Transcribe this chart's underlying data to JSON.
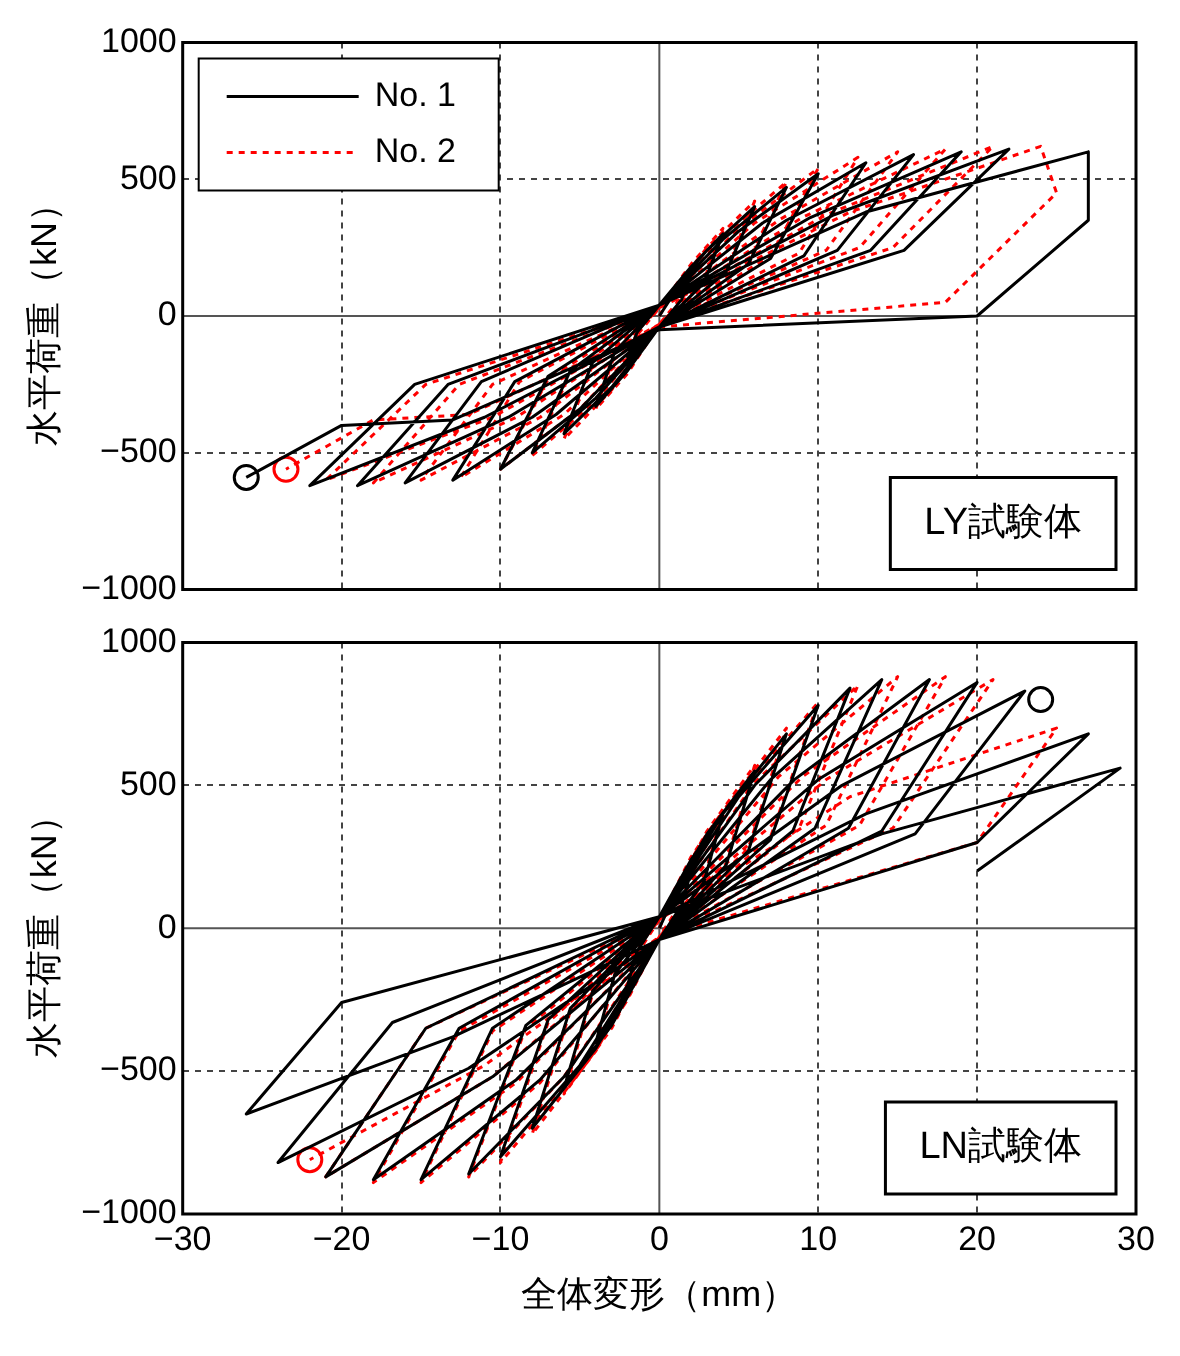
{
  "chart_data": [
    {
      "type": "line",
      "ylabel": "水平荷重（kN）",
      "xlim": [
        -30,
        30
      ],
      "xticks": [
        -30,
        -20,
        -10,
        0,
        10,
        20,
        30
      ],
      "ylim": [
        -1000,
        1000
      ],
      "yticks": [
        -1000,
        -500,
        0,
        500,
        1000
      ],
      "grid": true,
      "legend": "top left",
      "tick_labels": "y",
      "marker": "none",
      "annotations": [
        "LY試験体"
      ],
      "series": [
        {
          "name": "No. 1",
          "color": "#000000",
          "line_style": "solid",
          "x": [
            0,
            1,
            2,
            1.4,
            0,
            -1,
            -2,
            -1.4,
            0,
            2,
            4,
            2.8,
            0,
            -2,
            -4,
            -2.8,
            0,
            3,
            6,
            4.2,
            0,
            -3,
            -6,
            -4.2,
            0,
            4,
            8,
            5.6,
            0,
            -4,
            -8,
            -5.6,
            0,
            5,
            10,
            7,
            0,
            -5,
            -10,
            -7,
            0,
            6.5,
            13,
            9.1,
            0,
            -6.5,
            -13,
            -9.1,
            0,
            8,
            16,
            11.2,
            0,
            -8,
            -16,
            -11.2,
            0,
            9.5,
            19,
            13.3,
            0,
            -9.5,
            -19,
            -13.3,
            0,
            11,
            22,
            15.4,
            0,
            -11,
            -22,
            -15.4,
            0,
            13,
            27,
            27,
            20,
            0,
            -13,
            -20,
            -26
          ],
          "values": [
            0,
            90,
            150,
            60,
            -40,
            -90,
            -150,
            -60,
            40,
            180,
            300,
            120,
            -40,
            -200,
            -330,
            -130,
            40,
            240,
            400,
            160,
            -40,
            -260,
            -430,
            -170,
            40,
            280,
            470,
            190,
            -40,
            -300,
            -500,
            -200,
            40,
            310,
            520,
            210,
            -40,
            -340,
            -560,
            -220,
            40,
            340,
            560,
            220,
            -40,
            -360,
            -600,
            -240,
            40,
            350,
            590,
            240,
            -40,
            -370,
            -610,
            -240,
            40,
            360,
            600,
            240,
            -40,
            -370,
            -620,
            -250,
            40,
            370,
            610,
            240,
            -40,
            -370,
            -620,
            -250,
            40,
            380,
            600,
            350,
            0,
            -50,
            -380,
            -400,
            -590
          ]
        },
        {
          "name": "No. 2",
          "color": "#ff0000",
          "line_style": "dotted",
          "x": [
            0,
            1,
            2,
            1.4,
            0,
            -1,
            -2,
            -1.4,
            0,
            2,
            4,
            2.8,
            0,
            -2,
            -4,
            -2.8,
            0,
            3,
            6,
            4.2,
            0,
            -3,
            -6,
            -4.2,
            0,
            4,
            8,
            5.6,
            0,
            -4,
            -8,
            -5.6,
            0,
            5,
            10,
            7,
            0,
            -5,
            -10,
            -7,
            0,
            6,
            12.5,
            8.8,
            0,
            -6,
            -12.5,
            -8.8,
            0,
            7.5,
            15,
            10.5,
            0,
            -7.5,
            -15,
            -10.5,
            0,
            9,
            18,
            12.6,
            0,
            -9,
            -18,
            -12.6,
            0,
            10.5,
            21,
            14.7,
            0,
            -10.5,
            -21,
            -14.7,
            0,
            12,
            24,
            25,
            18,
            0,
            -12,
            -18,
            -23.5
          ],
          "values": [
            0,
            100,
            160,
            70,
            -30,
            -100,
            -160,
            -70,
            30,
            190,
            320,
            130,
            -30,
            -210,
            -340,
            -140,
            30,
            250,
            420,
            170,
            -30,
            -270,
            -450,
            -180,
            30,
            290,
            490,
            200,
            -30,
            -310,
            -510,
            -210,
            30,
            320,
            540,
            220,
            -30,
            -340,
            -560,
            -230,
            30,
            340,
            580,
            230,
            -30,
            -360,
            -590,
            -240,
            30,
            350,
            600,
            240,
            -30,
            -370,
            -600,
            -250,
            30,
            360,
            610,
            250,
            -30,
            -370,
            -610,
            -250,
            30,
            370,
            620,
            250,
            -30,
            -370,
            -600,
            -250,
            30,
            380,
            620,
            450,
            50,
            -40,
            -360,
            -380,
            -560
          ]
        },
        {
          "type": "scatter",
          "marker": "circle",
          "color": "#000000",
          "x": [
            -26
          ],
          "values": [
            -590
          ]
        },
        {
          "type": "scatter",
          "marker": "circle",
          "color": "#ff0000",
          "x": [
            -23.5
          ],
          "values": [
            -560
          ]
        }
      ]
    },
    {
      "type": "line",
      "xlabel": "全体変形（mm）",
      "ylabel": "水平荷重（kN）",
      "xlim": [
        -30,
        30
      ],
      "xticks": [
        -30,
        -20,
        -10,
        0,
        10,
        20,
        30
      ],
      "ylim": [
        -1000,
        1000
      ],
      "yticks": [
        -1000,
        -500,
        0,
        500,
        1000
      ],
      "grid": true,
      "marker": "none",
      "annotations": [
        "LN試験体"
      ],
      "series": [
        {
          "color": "#000000",
          "line_style": "solid",
          "x": [
            0,
            1,
            2,
            1.4,
            0,
            -1,
            -2,
            -1.4,
            0,
            2,
            4,
            2.8,
            0,
            -2,
            -4,
            -2.8,
            0,
            3,
            6,
            4.2,
            0,
            -3,
            -6,
            -4.2,
            0,
            4,
            8,
            5.6,
            0,
            -4,
            -8,
            -5.6,
            0,
            5,
            10,
            7,
            0,
            -5,
            -10,
            -7,
            0,
            6,
            12,
            8.4,
            0,
            -6,
            -12,
            -8.4,
            0,
            7,
            14,
            9.8,
            0,
            -7.5,
            -15,
            -10.5,
            0,
            8.5,
            17,
            11.9,
            0,
            -9,
            -18,
            -12.6,
            0,
            10,
            20,
            14,
            0,
            -10.5,
            -21,
            -14.7,
            0,
            11.5,
            23,
            16.1,
            0,
            -12,
            -24,
            -16.8,
            0,
            13,
            27,
            20,
            0,
            -13,
            -26,
            -20,
            0,
            14,
            29,
            20
          ],
          "values": [
            0,
            120,
            200,
            80,
            -40,
            -120,
            -200,
            -80,
            40,
            240,
            400,
            160,
            -40,
            -240,
            -400,
            -160,
            40,
            330,
            550,
            220,
            -40,
            -340,
            -560,
            -220,
            40,
            400,
            680,
            270,
            -40,
            -420,
            -700,
            -280,
            40,
            460,
            780,
            310,
            -40,
            -480,
            -800,
            -320,
            40,
            500,
            840,
            340,
            -40,
            -520,
            -860,
            -340,
            40,
            520,
            870,
            350,
            -40,
            -530,
            -880,
            -350,
            40,
            520,
            870,
            350,
            -40,
            -530,
            -880,
            -350,
            40,
            520,
            860,
            340,
            -40,
            -520,
            -870,
            -350,
            40,
            500,
            830,
            330,
            -40,
            -490,
            -820,
            -330,
            40,
            400,
            680,
            300,
            -40,
            -380,
            -650,
            -260,
            40,
            330,
            560,
            200
          ]
        },
        {
          "color": "#ff0000",
          "line_style": "dotted",
          "x": [
            0,
            1,
            2,
            1.4,
            0,
            -1,
            -2,
            -1.4,
            0,
            2,
            4,
            2.8,
            0,
            -2,
            -4,
            -2.8,
            0,
            3,
            6,
            4.2,
            0,
            -3,
            -6,
            -4.2,
            0,
            4,
            8,
            5.6,
            0,
            -4,
            -8,
            -5.6,
            0,
            5,
            10,
            7,
            0,
            -5,
            -10,
            -7,
            0,
            6,
            12.5,
            8.8,
            0,
            -6,
            -12,
            -8.4,
            0,
            7.5,
            15,
            10.5,
            0,
            -7.5,
            -15,
            -10.5,
            0,
            9,
            18,
            12.6,
            0,
            -9,
            -18,
            -12.6,
            0,
            10.5,
            21,
            14.7,
            0,
            -10.5,
            -21,
            -14.7,
            0,
            12,
            25,
            20,
            0,
            -11,
            -22
          ],
          "values": [
            0,
            130,
            210,
            90,
            -30,
            -130,
            -210,
            -90,
            30,
            250,
            410,
            170,
            -30,
            -250,
            -420,
            -170,
            30,
            340,
            570,
            230,
            -30,
            -350,
            -580,
            -230,
            30,
            410,
            700,
            280,
            -30,
            -430,
            -720,
            -290,
            30,
            470,
            790,
            320,
            -30,
            -490,
            -820,
            -330,
            30,
            510,
            850,
            350,
            -30,
            -520,
            -870,
            -350,
            30,
            530,
            880,
            360,
            -30,
            -540,
            -890,
            -360,
            30,
            530,
            880,
            360,
            -30,
            -540,
            -890,
            -360,
            30,
            520,
            870,
            350,
            -30,
            -520,
            -870,
            -350,
            30,
            460,
            700,
            300,
            -30,
            -480,
            -810
          ]
        },
        {
          "type": "scatter",
          "marker": "circle",
          "color": "#000000",
          "x": [
            24
          ],
          "values": [
            800
          ]
        },
        {
          "type": "scatter",
          "marker": "circle",
          "color": "#ff0000",
          "x": [
            -22
          ],
          "values": [
            -810
          ]
        }
      ]
    }
  ]
}
